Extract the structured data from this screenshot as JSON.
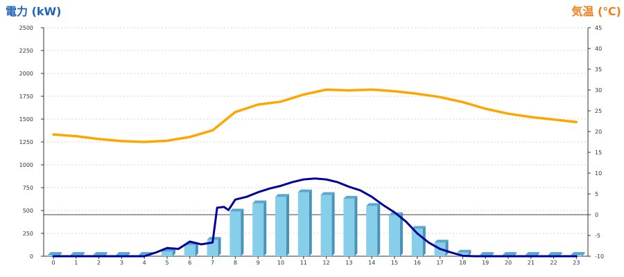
{
  "chart_data": {
    "type": "bar+line",
    "left_axis": {
      "label": "電力 (kW)",
      "range": [
        0,
        2500
      ],
      "ticks": [
        0,
        250,
        500,
        750,
        1000,
        1250,
        1500,
        1750,
        2000,
        2250,
        2500
      ]
    },
    "right_axis": {
      "label": "気温 (℃)",
      "range": [
        -10,
        45
      ],
      "ticks": [
        -10,
        -5,
        0,
        5,
        10,
        15,
        20,
        25,
        30,
        35,
        40,
        45
      ]
    },
    "x_axis": {
      "categories": [
        "0",
        "1",
        "2",
        "3",
        "4",
        "5",
        "6",
        "7",
        "8",
        "9",
        "10",
        "11",
        "12",
        "13",
        "14",
        "15",
        "16",
        "17",
        "18",
        "19",
        "20",
        "21",
        "22",
        "23"
      ]
    },
    "grid": "horizontal-dashed",
    "reference_line": {
      "axis": "right",
      "value": 0
    },
    "series": [
      {
        "kind": "bar",
        "axis": "left",
        "color": "#87ceeb",
        "values": [
          0,
          0,
          0,
          0,
          0,
          50,
          120,
          180,
          490,
          580,
          650,
          700,
          670,
          630,
          550,
          450,
          300,
          150,
          40,
          0,
          0,
          0,
          0,
          0
        ]
      },
      {
        "kind": "line",
        "axis": "left",
        "color": "#000099",
        "x": [
          0,
          1,
          2,
          3,
          4,
          4.5,
          5,
          5.5,
          6,
          6.5,
          7,
          7.2,
          7.5,
          7.7,
          8,
          8.5,
          9,
          9.5,
          10,
          10.5,
          11,
          11.5,
          12,
          12.5,
          13,
          13.5,
          14,
          14.5,
          15,
          15.5,
          16,
          16.5,
          17,
          17.5,
          18,
          18.5,
          19,
          20,
          21,
          22,
          23
        ],
        "values": [
          0,
          0,
          0,
          0,
          0,
          40,
          90,
          80,
          160,
          130,
          150,
          530,
          540,
          505,
          620,
          650,
          700,
          740,
          770,
          810,
          840,
          850,
          840,
          810,
          760,
          720,
          650,
          560,
          480,
          380,
          250,
          150,
          80,
          40,
          5,
          0,
          0,
          0,
          0,
          0,
          0
        ]
      },
      {
        "kind": "line",
        "axis": "right",
        "color": "#ffa500",
        "values": [
          19.3,
          18.9,
          18.2,
          17.7,
          17.5,
          17.8,
          18.7,
          20.3,
          24.7,
          26.5,
          27.2,
          28.9,
          30.1,
          29.9,
          30.1,
          29.7,
          29.1,
          28.3,
          27.1,
          25.5,
          24.3,
          23.5,
          22.9,
          22.3
        ]
      }
    ]
  }
}
